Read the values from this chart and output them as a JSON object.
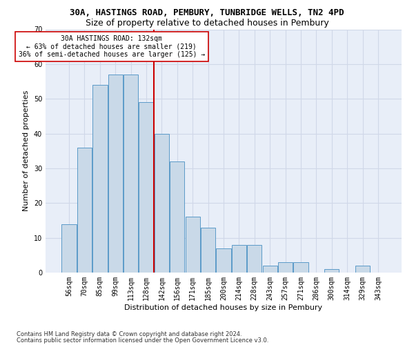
{
  "title1": "30A, HASTINGS ROAD, PEMBURY, TUNBRIDGE WELLS, TN2 4PD",
  "title2": "Size of property relative to detached houses in Pembury",
  "xlabel": "Distribution of detached houses by size in Pembury",
  "ylabel": "Number of detached properties",
  "categories": [
    "56sqm",
    "70sqm",
    "85sqm",
    "99sqm",
    "113sqm",
    "128sqm",
    "142sqm",
    "156sqm",
    "171sqm",
    "185sqm",
    "200sqm",
    "214sqm",
    "228sqm",
    "243sqm",
    "257sqm",
    "271sqm",
    "286sqm",
    "300sqm",
    "314sqm",
    "329sqm",
    "343sqm"
  ],
  "values": [
    14,
    36,
    54,
    57,
    57,
    49,
    40,
    32,
    16,
    13,
    7,
    8,
    8,
    2,
    3,
    3,
    0,
    1,
    0,
    2,
    0
  ],
  "bar_color": "#c9d9e8",
  "bar_edge_color": "#5b9ac8",
  "vline_color": "#cc0000",
  "annotation_line1": "30A HASTINGS ROAD: 132sqm",
  "annotation_line2": "← 63% of detached houses are smaller (219)",
  "annotation_line3": "36% of semi-detached houses are larger (125) →",
  "annotation_box_color": "#ffffff",
  "annotation_box_edgecolor": "#cc0000",
  "ylim": [
    0,
    70
  ],
  "yticks": [
    0,
    10,
    20,
    30,
    40,
    50,
    60,
    70
  ],
  "grid_color": "#d0d8e8",
  "bg_color": "#e8eef8",
  "footer1": "Contains HM Land Registry data © Crown copyright and database right 2024.",
  "footer2": "Contains public sector information licensed under the Open Government Licence v3.0.",
  "title1_fontsize": 9,
  "title2_fontsize": 9,
  "xlabel_fontsize": 8,
  "ylabel_fontsize": 8,
  "tick_fontsize": 7,
  "footer_fontsize": 6
}
